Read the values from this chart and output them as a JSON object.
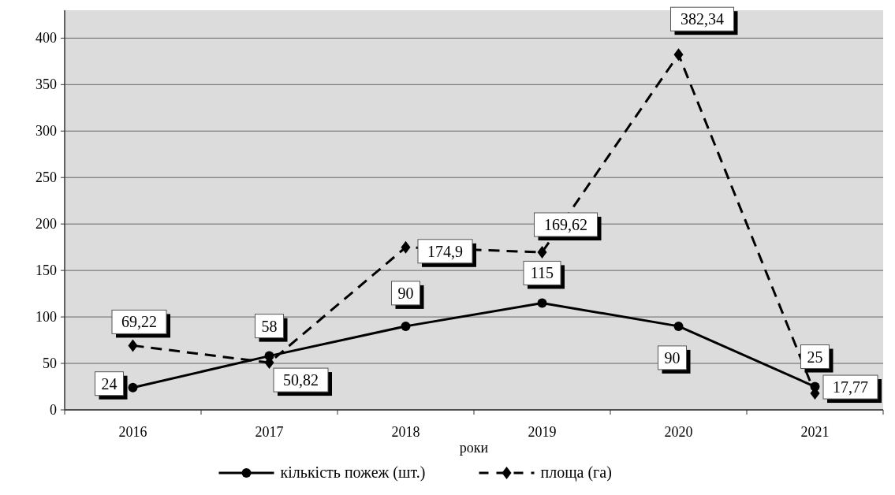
{
  "chart_data": {
    "type": "line",
    "xlabel": "роки",
    "categories": [
      "2016",
      "2017",
      "2018",
      "2019",
      "2020",
      "2021"
    ],
    "series": [
      {
        "name": "кількість пожеж (шт.)",
        "color": "#000000",
        "marker": "circle",
        "line_style": "solid",
        "values": [
          24,
          58,
          90,
          115,
          90,
          25
        ],
        "value_labels": [
          "24",
          "58",
          "90",
          "115",
          "90",
          "25"
        ]
      },
      {
        "name": "площа (га)",
        "color": "#000000",
        "marker": "diamond",
        "line_style": "dashed",
        "values": [
          69.22,
          50.82,
          174.9,
          169.62,
          382.34,
          17.77
        ],
        "value_labels": [
          "69,22",
          "50,82",
          "174,9",
          "169,62",
          "382,34",
          "17,77"
        ]
      }
    ],
    "ylim": [
      0,
      430
    ],
    "yticks": [
      0,
      50,
      100,
      150,
      200,
      250,
      300,
      350,
      400
    ],
    "grid": "y",
    "legend": "bottom"
  }
}
